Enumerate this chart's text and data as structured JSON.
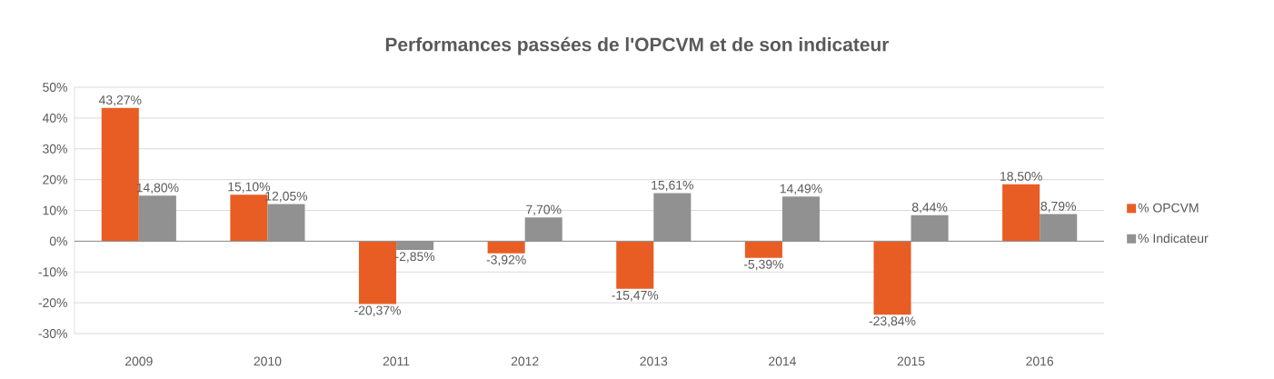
{
  "chart_data": {
    "type": "bar",
    "title": "Performances passées de l'OPCVM et de son indicateur",
    "categories": [
      "2009",
      "2010",
      "2011",
      "2012",
      "2013",
      "2014",
      "2015",
      "2016"
    ],
    "series": [
      {
        "name": "% OPCVM",
        "color": "#e85d24",
        "values": [
          43.27,
          15.1,
          -20.37,
          -3.92,
          -15.47,
          -5.39,
          -23.84,
          18.5
        ],
        "value_labels": [
          "43,27%",
          "15,10%",
          "-20,37%",
          "-3,92%",
          "-15,47%",
          "-5,39%",
          "-23,84%",
          "18,50%"
        ]
      },
      {
        "name": "% Indicateur",
        "color": "#919191",
        "values": [
          14.8,
          12.05,
          -2.85,
          7.7,
          15.61,
          14.49,
          8.44,
          8.79
        ],
        "value_labels": [
          "14,80%",
          "12,05%",
          "-2,85%",
          "7,70%",
          "15,61%",
          "14,49%",
          "8,44%",
          "8,79%"
        ]
      }
    ],
    "ylim": [
      -30,
      50
    ],
    "yticks": [
      {
        "value": -30,
        "label": "-30%"
      },
      {
        "value": -20,
        "label": "-20%"
      },
      {
        "value": -10,
        "label": "-10%"
      },
      {
        "value": 0,
        "label": "0%"
      },
      {
        "value": 10,
        "label": "10%"
      },
      {
        "value": 20,
        "label": "20%"
      },
      {
        "value": 30,
        "label": "30%"
      },
      {
        "value": 40,
        "label": "40%"
      },
      {
        "value": 50,
        "label": "50%"
      }
    ],
    "grid": "y",
    "legend": "right"
  }
}
